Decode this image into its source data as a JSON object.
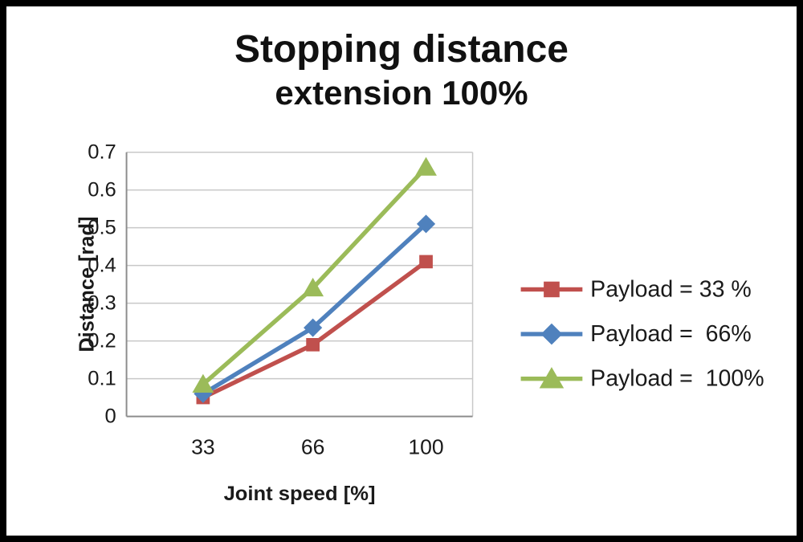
{
  "chart": {
    "title_line1": "Stopping distance",
    "title_line2": "extension 100%"
  },
  "chart_data": {
    "type": "line",
    "title": "Stopping distance extension 100%",
    "xlabel": "Joint speed [%]",
    "ylabel": "Distance [rad]",
    "x": [
      33,
      66,
      100
    ],
    "x_tick_labels": [
      "33",
      "66",
      "100"
    ],
    "ylim": [
      0,
      0.7
    ],
    "ytick_step": 0.1,
    "grid": true,
    "grid_color": "#c8c8c8",
    "axis_color": "#8c8c8c",
    "text_color": "#1a1a1a",
    "legend_position": "right",
    "series": [
      {
        "name": "Payload = 33 %",
        "marker": "square",
        "color": "#c0504d",
        "values": [
          0.05,
          0.19,
          0.41
        ]
      },
      {
        "name": "Payload =  66%",
        "marker": "diamond",
        "color": "#4f81bd",
        "values": [
          0.06,
          0.235,
          0.51
        ]
      },
      {
        "name": "Payload =  100%",
        "marker": "triangle",
        "color": "#9bbb59",
        "values": [
          0.085,
          0.34,
          0.66
        ]
      }
    ]
  }
}
